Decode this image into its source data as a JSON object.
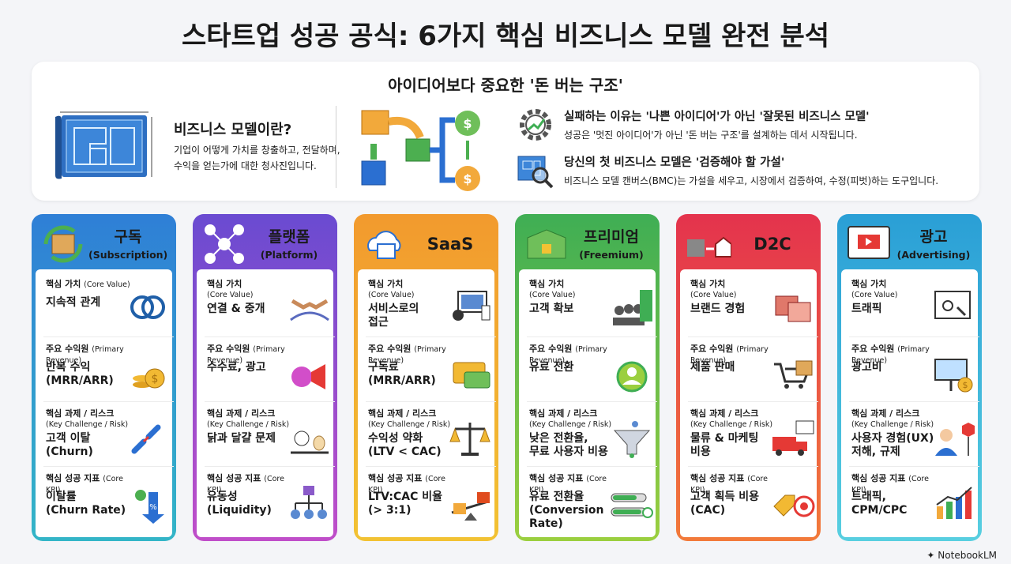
{
  "title": "스타트업 성공 공식: 6가지 핵심 비즈니스 모델 완전 분석",
  "intro": {
    "heading": "아이디어보다 중요한 '돈 버는 구조'",
    "definition": {
      "title": "비즈니스 모델이란?",
      "line1": "기업이 어떻게 가치를 창출하고, 전달하며,",
      "line2": "수익을 얻는가에 대한 청사진입니다."
    },
    "point1": {
      "title": "실패하는 이유는 '나쁜 아이디어'가 아닌 '잘못된 비즈니스 모델'",
      "text": "성공은 '멋진 아이디어'가 아닌 '돈 버는 구조'를 설계하는 데서 시작됩니다."
    },
    "point2": {
      "title": "당신의 첫 비즈니스 모델은 '검증해야 할 가설'",
      "text": "비즈니스 모델 캔버스(BMC)는 가설을 세우고, 시장에서 검증하여, 수정(피벗)하는 도구입니다."
    }
  },
  "labels": {
    "core_value": "핵심 가치",
    "core_value_en": "(Core Value)",
    "revenue": "주요 수익원",
    "revenue_en": "(Primary Revenue)",
    "challenge": "핵심 과제 / 리스크",
    "challenge_en": "(Key Challenge / Risk)",
    "kpi": "핵심 성공 지표",
    "kpi_en": "(Core KPI)"
  },
  "cards": [
    {
      "title": "구독",
      "subtitle": "(Subscription)",
      "core_value": "지속적 관계",
      "revenue1": "반복 수익",
      "revenue2": "(MRR/ARR)",
      "challenge1": "고객 이탈",
      "challenge2": "(Churn)",
      "kpi1": "이탈률",
      "kpi2": "(Churn Rate)",
      "color1": "#2f7fd6",
      "color2": "#33b5c7"
    },
    {
      "title": "플랫폼",
      "subtitle": "(Platform)",
      "core_value": "연결 & 중개",
      "revenue1": "수수료, 광고",
      "revenue2": "",
      "challenge1": "닭과 달걀 문제",
      "challenge2": "",
      "kpi1": "유동성",
      "kpi2": "(Liquidity)",
      "color1": "#6a4bd1",
      "color2": "#c04ec9"
    },
    {
      "title": "SaaS",
      "subtitle": "",
      "core_value": "서비스로의",
      "core_value2": "접근",
      "revenue1": "구독료",
      "revenue2": "(MRR/ARR)",
      "challenge1": "수익성 약화",
      "challenge2": "(LTV < CAC)",
      "kpi1": "LTV:CAC 비율",
      "kpi2": "(> 3:1)",
      "color1": "#f29a2e",
      "color2": "#f2c233"
    },
    {
      "title": "프리미엄",
      "subtitle": "(Freemium)",
      "core_value": "고객 확보",
      "revenue1": "유료 전환",
      "revenue2": "",
      "challenge1": "낮은 전환율,",
      "challenge2": "무료 사용자 비용",
      "kpi1": "유료 전환율",
      "kpi2": "(Conversion Rate)",
      "color1": "#3fae54",
      "color2": "#9bcf3f"
    },
    {
      "title": "D2C",
      "subtitle": "",
      "core_value": "브랜드 경험",
      "revenue1": "제품 판매",
      "revenue2": "",
      "challenge1": "물류 & 마케팅",
      "challenge2": "비용",
      "kpi1": "고객 획득 비용",
      "kpi2": "(CAC)",
      "color1": "#e4334d",
      "color2": "#f27a3a"
    },
    {
      "title": "광고",
      "subtitle": "(Advertising)",
      "core_value": "트래픽",
      "revenue1": "광고비",
      "revenue2": "",
      "challenge1": "사용자 경험(UX)",
      "challenge2": "저해, 규제",
      "kpi1": "트래픽,",
      "kpi2": "CPM/CPC",
      "color1": "#2a9fd6",
      "color2": "#58cfe0"
    }
  ],
  "footer_logo": "NotebookLM",
  "icons": [
    "blueprint-icon",
    "flow-icon",
    "gear-chart-icon",
    "magnifier-icon",
    "subscription-box-icon",
    "network-icon",
    "cloud-icon",
    "open-box-icon",
    "factory-home-icon",
    "video-window-icon"
  ]
}
